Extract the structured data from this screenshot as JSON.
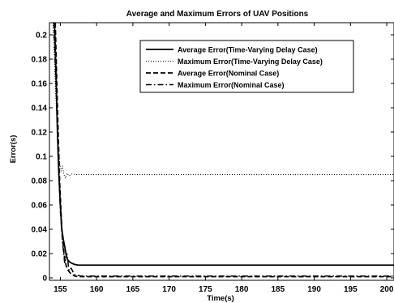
{
  "chart_data": {
    "type": "line",
    "title": "Average and Maximum Errors of UAV Positions",
    "xlabel": "Time(s)",
    "ylabel": "Error(s)",
    "xlim": [
      153.5,
      201
    ],
    "ylim": [
      -0.002,
      0.21
    ],
    "xticks": [
      155,
      160,
      165,
      170,
      175,
      180,
      185,
      190,
      195,
      200
    ],
    "yticks": [
      0,
      0.02,
      0.04,
      0.06,
      0.08,
      0.1,
      0.12,
      0.14,
      0.16,
      0.18,
      0.2
    ],
    "xtick_labels": [
      "155",
      "160",
      "165",
      "170",
      "175",
      "180",
      "185",
      "190",
      "195",
      "200"
    ],
    "ytick_labels": [
      "0",
      "0.02",
      "0.04",
      "0.06",
      "0.08",
      "0.1",
      "0.12",
      "0.14",
      "0.16",
      "0.18",
      "0.2"
    ],
    "grid": false,
    "legend_position": "top-right",
    "series": [
      {
        "name": "Average Error(Time-Varying Delay Case)",
        "style": "solid",
        "color": "#000000",
        "x": [
          154.2,
          154.4,
          154.6,
          154.8,
          155.0,
          155.2,
          155.4,
          155.6,
          155.8,
          156.0,
          156.3,
          156.6,
          157.0,
          157.5,
          158,
          160,
          170,
          180,
          190,
          201
        ],
        "y": [
          0.21,
          0.17,
          0.12,
          0.085,
          0.06,
          0.04,
          0.032,
          0.026,
          0.019,
          0.015,
          0.013,
          0.012,
          0.011,
          0.0105,
          0.0105,
          0.0105,
          0.0105,
          0.0105,
          0.0105,
          0.0105
        ]
      },
      {
        "name": "Maximum Error(Time-Varying Delay Case)",
        "style": "dotted",
        "color": "#000000",
        "x": [
          154.0,
          154.3,
          154.6,
          154.9,
          155.1,
          155.3,
          155.5,
          155.7,
          155.9,
          156.2,
          156.6,
          157.2,
          158,
          160,
          170,
          180,
          190,
          201
        ],
        "y": [
          0.21,
          0.16,
          0.12,
          0.095,
          0.088,
          0.092,
          0.085,
          0.082,
          0.086,
          0.084,
          0.0855,
          0.085,
          0.085,
          0.085,
          0.085,
          0.085,
          0.085,
          0.085
        ]
      },
      {
        "name": "Average Error(Nominal Case)",
        "style": "dashed",
        "color": "#000000",
        "x": [
          154.3,
          154.6,
          154.9,
          155.2,
          155.5,
          155.8,
          156.1,
          156.5,
          157.0,
          157.5,
          158,
          160,
          170,
          180,
          190,
          201
        ],
        "y": [
          0.21,
          0.14,
          0.08,
          0.04,
          0.02,
          0.01,
          0.006,
          0.003,
          0.0015,
          0.001,
          0.001,
          0.001,
          0.001,
          0.001,
          0.001,
          0.001
        ]
      },
      {
        "name": "Maximum Error(Nominal Case)",
        "style": "dashdot",
        "color": "#000000",
        "x": [
          154.1,
          154.4,
          154.7,
          155.0,
          155.3,
          155.6,
          155.9,
          156.2,
          156.5,
          156.9,
          157.4,
          158,
          160,
          170,
          180,
          190,
          201
        ],
        "y": [
          0.21,
          0.16,
          0.1,
          0.055,
          0.03,
          0.012,
          0.02,
          0.006,
          0.008,
          0.003,
          0.002,
          0.0015,
          0.0015,
          0.0015,
          0.0015,
          0.0015,
          0.0015
        ]
      }
    ]
  }
}
